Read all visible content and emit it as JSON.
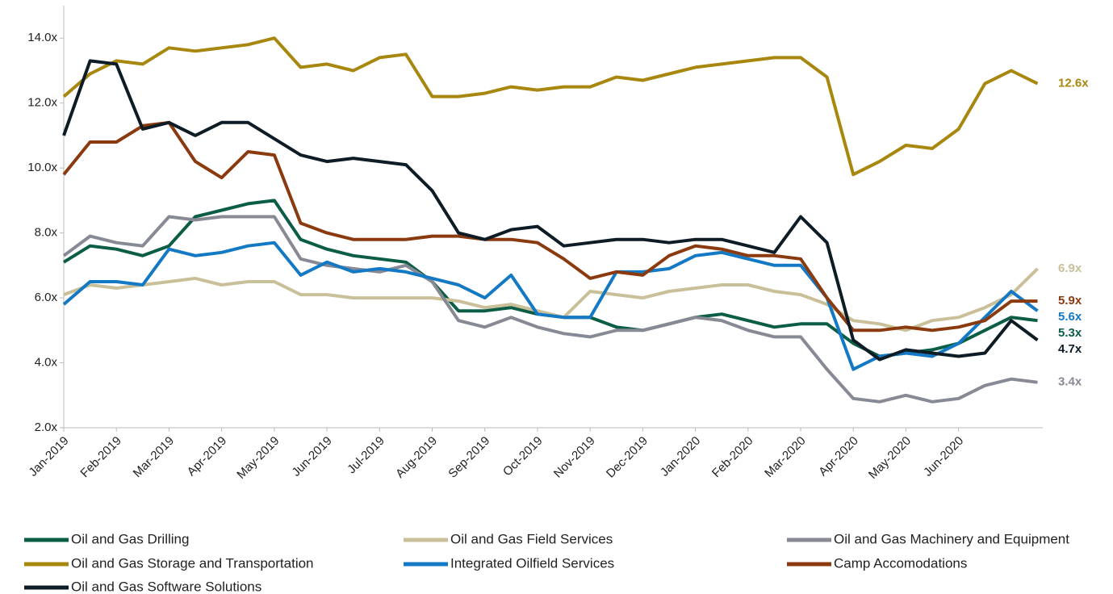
{
  "chart_data": {
    "type": "line",
    "x": [
      0,
      0.5,
      1,
      1.5,
      2,
      2.5,
      3,
      3.5,
      4,
      4.5,
      5,
      5.5,
      6,
      6.5,
      7,
      7.5,
      8,
      8.5,
      9,
      9.5,
      10,
      10.5,
      11,
      11.5,
      12,
      12.5,
      13,
      13.5,
      14,
      14.5,
      15,
      15.5,
      16,
      16.5,
      17,
      17.5,
      18,
      18.5
    ],
    "xlim": [
      0,
      18.6
    ],
    "xticks": [
      {
        "value": 0,
        "label": "Jan-2019"
      },
      {
        "value": 1,
        "label": "Feb-2019"
      },
      {
        "value": 2,
        "label": "Mar-2019"
      },
      {
        "value": 3,
        "label": "Apr-2019"
      },
      {
        "value": 4,
        "label": "May-2019"
      },
      {
        "value": 5,
        "label": "Jun-2019"
      },
      {
        "value": 6,
        "label": "Jul-2019"
      },
      {
        "value": 7,
        "label": "Aug-2019"
      },
      {
        "value": 8,
        "label": "Sep-2019"
      },
      {
        "value": 9,
        "label": "Oct-2019"
      },
      {
        "value": 10,
        "label": "Nov-2019"
      },
      {
        "value": 11,
        "label": "Dec-2019"
      },
      {
        "value": 12,
        "label": "Jan-2020"
      },
      {
        "value": 13,
        "label": "Feb-2020"
      },
      {
        "value": 14,
        "label": "Mar-2020"
      },
      {
        "value": 15,
        "label": "Apr-2020"
      },
      {
        "value": 16,
        "label": "May-2020"
      },
      {
        "value": 17,
        "label": "Jun-2020"
      }
    ],
    "ylim": [
      2,
      15
    ],
    "yticks": [
      {
        "value": 2,
        "label": "2.0x"
      },
      {
        "value": 4,
        "label": "4.0x"
      },
      {
        "value": 6,
        "label": "6.0x"
      },
      {
        "value": 8,
        "label": "8.0x"
      },
      {
        "value": 10,
        "label": "10.0x"
      },
      {
        "value": 12,
        "label": "12.0x"
      },
      {
        "value": 14,
        "label": "14.0x"
      }
    ],
    "series": [
      {
        "name": "Oil and Gas Drilling",
        "color": "#0b5d45",
        "end_label": "5.3x",
        "values": [
          7.1,
          7.6,
          7.5,
          7.3,
          7.6,
          8.5,
          8.7,
          8.9,
          9.0,
          7.8,
          7.5,
          7.3,
          7.2,
          7.1,
          6.5,
          5.6,
          5.6,
          5.7,
          5.5,
          5.4,
          5.4,
          5.1,
          5.0,
          5.2,
          5.4,
          5.5,
          5.3,
          5.1,
          5.2,
          5.2,
          4.6,
          4.2,
          4.3,
          4.4,
          4.6,
          5.0,
          5.4,
          5.3
        ]
      },
      {
        "name": "Oil and Gas Field Services",
        "color": "#c9c09a",
        "end_label": "6.9x",
        "values": [
          6.1,
          6.4,
          6.3,
          6.4,
          6.5,
          6.6,
          6.4,
          6.5,
          6.5,
          6.1,
          6.1,
          6.0,
          6.0,
          6.0,
          6.0,
          5.9,
          5.7,
          5.8,
          5.6,
          5.4,
          6.2,
          6.1,
          6.0,
          6.2,
          6.3,
          6.4,
          6.4,
          6.2,
          6.1,
          5.8,
          5.3,
          5.2,
          5.0,
          5.3,
          5.4,
          5.7,
          6.1,
          6.9
        ]
      },
      {
        "name": "Oil and Gas Machinery and Equipment",
        "color": "#878a94",
        "end_label": "3.4x",
        "values": [
          7.3,
          7.9,
          7.7,
          7.6,
          8.5,
          8.4,
          8.5,
          8.5,
          8.5,
          7.2,
          7.0,
          6.9,
          6.8,
          7.0,
          6.5,
          5.3,
          5.1,
          5.4,
          5.1,
          4.9,
          4.8,
          5.0,
          5.0,
          5.2,
          5.4,
          5.3,
          5.0,
          4.8,
          4.8,
          3.8,
          2.9,
          2.8,
          3.0,
          2.8,
          2.9,
          3.3,
          3.5,
          3.4
        ]
      },
      {
        "name": "Oil and Gas Storage and Transportation",
        "color": "#a8870f",
        "end_label": "12.6x",
        "values": [
          12.2,
          12.9,
          13.3,
          13.2,
          13.7,
          13.6,
          13.7,
          13.8,
          14.0,
          13.1,
          13.2,
          13.0,
          13.4,
          13.5,
          12.2,
          12.2,
          12.3,
          12.5,
          12.4,
          12.5,
          12.5,
          12.8,
          12.7,
          12.9,
          13.1,
          13.2,
          13.3,
          13.4,
          13.4,
          12.8,
          9.8,
          10.2,
          10.7,
          10.6,
          11.2,
          12.6,
          13.0,
          12.6
        ]
      },
      {
        "name": "Integrated Oilfield Services",
        "color": "#1479c4",
        "end_label": "5.6x",
        "values": [
          5.8,
          6.5,
          6.5,
          6.4,
          7.5,
          7.3,
          7.4,
          7.6,
          7.7,
          6.7,
          7.1,
          6.8,
          6.9,
          6.8,
          6.6,
          6.4,
          6.0,
          6.7,
          5.5,
          5.4,
          5.4,
          6.8,
          6.8,
          6.9,
          7.3,
          7.4,
          7.2,
          7.0,
          7.0,
          6.0,
          3.8,
          4.2,
          4.3,
          4.2,
          4.6,
          5.4,
          6.2,
          5.6
        ]
      },
      {
        "name": "Camp Accomodations",
        "color": "#8b3a0f",
        "end_label": "5.9x",
        "values": [
          9.8,
          10.8,
          10.8,
          11.3,
          11.4,
          10.2,
          9.7,
          10.5,
          10.4,
          8.3,
          8.0,
          7.8,
          7.8,
          7.8,
          7.9,
          7.9,
          7.8,
          7.8,
          7.7,
          7.2,
          6.6,
          6.8,
          6.7,
          7.3,
          7.6,
          7.5,
          7.3,
          7.3,
          7.2,
          6.0,
          5.0,
          5.0,
          5.1,
          5.0,
          5.1,
          5.3,
          5.9,
          5.9
        ]
      },
      {
        "name": "Oil and Gas Software Solutions",
        "color": "#0e1c26",
        "end_label": "4.7x",
        "values": [
          11.0,
          13.3,
          13.2,
          11.2,
          11.4,
          11.0,
          11.4,
          11.4,
          10.9,
          10.4,
          10.2,
          10.3,
          10.2,
          10.1,
          9.3,
          8.0,
          7.8,
          8.1,
          8.2,
          7.6,
          7.7,
          7.8,
          7.8,
          7.7,
          7.8,
          7.8,
          7.6,
          7.4,
          8.5,
          7.7,
          4.7,
          4.1,
          4.4,
          4.3,
          4.2,
          4.3,
          5.3,
          4.7
        ]
      }
    ]
  }
}
